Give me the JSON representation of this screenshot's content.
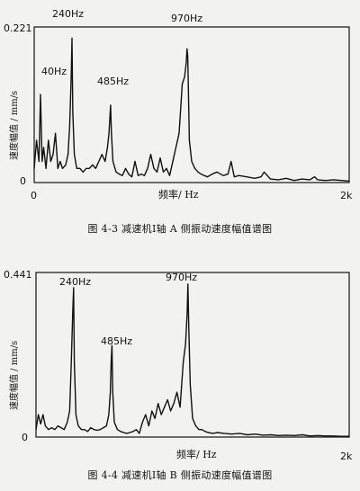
{
  "chart_data": [
    {
      "type": "line",
      "caption": "图 4-3 减速机I轴 A 侧振动速度幅值谱图",
      "xlabel": "频率/ Hz",
      "ylabel": "速度幅值 / mm/s",
      "xlim": [
        0,
        2000
      ],
      "ylim": [
        0,
        0.221
      ],
      "y_top_label": "0.221",
      "y_bottom_label": "0",
      "x_left_label": "0",
      "x_right_label": "2k",
      "grid": false,
      "annotations": [
        {
          "text": "40Hz",
          "x": 40,
          "y": 0.125
        },
        {
          "text": "240Hz",
          "x": 240,
          "y": 0.205
        },
        {
          "text": "485Hz",
          "x": 485,
          "y": 0.11
        },
        {
          "text": "970Hz",
          "x": 970,
          "y": 0.19
        }
      ],
      "series": [
        {
          "x": [
            0,
            15,
            30,
            40,
            50,
            60,
            75,
            90,
            105,
            120,
            135,
            150,
            165,
            180,
            200,
            215,
            225,
            235,
            240,
            245,
            255,
            270,
            290,
            310,
            330,
            350,
            370,
            390,
            410,
            430,
            450,
            465,
            475,
            480,
            485,
            490,
            500,
            520,
            540,
            560,
            580,
            600,
            620,
            640,
            660,
            680,
            700,
            720,
            740,
            760,
            780,
            800,
            820,
            840,
            860,
            880,
            900,
            920,
            940,
            955,
            965,
            970,
            975,
            985,
            1000,
            1020,
            1040,
            1060,
            1080,
            1100,
            1130,
            1160,
            1200,
            1230,
            1250,
            1270,
            1300,
            1350,
            1400,
            1440,
            1460,
            1500,
            1550,
            1600,
            1650,
            1700,
            1750,
            1780,
            1800,
            1850,
            1900,
            1950,
            2000
          ],
          "y": [
            0.02,
            0.06,
            0.03,
            0.125,
            0.03,
            0.05,
            0.02,
            0.06,
            0.03,
            0.04,
            0.07,
            0.02,
            0.03,
            0.02,
            0.025,
            0.04,
            0.08,
            0.15,
            0.205,
            0.1,
            0.04,
            0.02,
            0.02,
            0.015,
            0.02,
            0.02,
            0.025,
            0.02,
            0.03,
            0.04,
            0.03,
            0.05,
            0.07,
            0.09,
            0.11,
            0.07,
            0.03,
            0.015,
            0.012,
            0.01,
            0.02,
            0.012,
            0.008,
            0.03,
            0.01,
            0.012,
            0.01,
            0.02,
            0.04,
            0.02,
            0.015,
            0.035,
            0.015,
            0.02,
            0.01,
            0.03,
            0.05,
            0.07,
            0.14,
            0.15,
            0.17,
            0.19,
            0.18,
            0.06,
            0.03,
            0.02,
            0.015,
            0.012,
            0.01,
            0.008,
            0.012,
            0.015,
            0.01,
            0.012,
            0.03,
            0.008,
            0.01,
            0.008,
            0.006,
            0.008,
            0.015,
            0.005,
            0.004,
            0.006,
            0.003,
            0.005,
            0.004,
            0.008,
            0.004,
            0.003,
            0.004,
            0.003,
            0.002
          ]
        }
      ]
    },
    {
      "type": "line",
      "caption": "图 4-4 减速机I轴 B 侧振动速度幅值谱图",
      "xlabel": "频率/ Hz",
      "ylabel": "速度幅值 / mm/s",
      "xlim": [
        0,
        2000
      ],
      "ylim": [
        0,
        0.441
      ],
      "y_top_label": "0.441",
      "y_bottom_label": "0",
      "x_left_label": "",
      "x_right_label": "2k",
      "grid": false,
      "annotations": [
        {
          "text": "240Hz",
          "x": 240,
          "y": 0.4
        },
        {
          "text": "485Hz",
          "x": 485,
          "y": 0.245
        },
        {
          "text": "970Hz",
          "x": 970,
          "y": 0.41
        }
      ],
      "series": [
        {
          "x": [
            0,
            15,
            30,
            45,
            60,
            80,
            100,
            120,
            140,
            160,
            180,
            200,
            215,
            225,
            235,
            240,
            245,
            255,
            270,
            290,
            310,
            330,
            350,
            370,
            390,
            410,
            430,
            450,
            465,
            475,
            480,
            485,
            490,
            500,
            520,
            540,
            560,
            580,
            600,
            620,
            640,
            660,
            680,
            700,
            720,
            740,
            760,
            780,
            800,
            820,
            840,
            860,
            880,
            900,
            920,
            940,
            955,
            965,
            970,
            975,
            985,
            1000,
            1020,
            1040,
            1060,
            1080,
            1100,
            1130,
            1160,
            1200,
            1250,
            1300,
            1350,
            1400,
            1450,
            1500,
            1550,
            1600,
            1650,
            1700,
            1750,
            1800,
            1850,
            1900,
            1950,
            2000
          ],
          "y": [
            0.02,
            0.06,
            0.035,
            0.06,
            0.03,
            0.02,
            0.025,
            0.02,
            0.03,
            0.025,
            0.02,
            0.04,
            0.07,
            0.2,
            0.34,
            0.4,
            0.2,
            0.06,
            0.03,
            0.02,
            0.02,
            0.015,
            0.025,
            0.02,
            0.018,
            0.02,
            0.025,
            0.03,
            0.06,
            0.12,
            0.2,
            0.245,
            0.12,
            0.04,
            0.02,
            0.015,
            0.012,
            0.01,
            0.012,
            0.015,
            0.02,
            0.01,
            0.04,
            0.06,
            0.03,
            0.07,
            0.05,
            0.09,
            0.06,
            0.08,
            0.1,
            0.07,
            0.09,
            0.12,
            0.08,
            0.2,
            0.25,
            0.33,
            0.41,
            0.3,
            0.14,
            0.05,
            0.03,
            0.02,
            0.02,
            0.015,
            0.012,
            0.01,
            0.012,
            0.01,
            0.008,
            0.01,
            0.006,
            0.008,
            0.005,
            0.006,
            0.004,
            0.005,
            0.004,
            0.006,
            0.003,
            0.004,
            0.003,
            0.003,
            0.002,
            0.002
          ]
        }
      ]
    }
  ]
}
